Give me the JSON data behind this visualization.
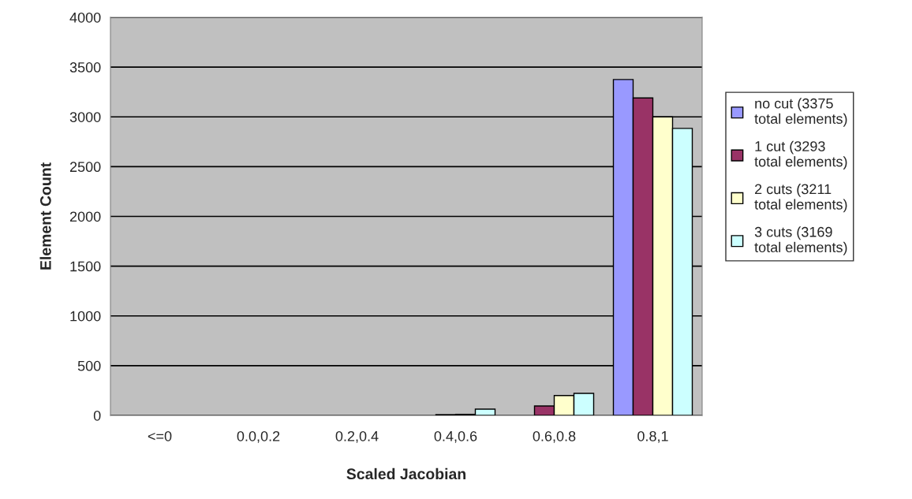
{
  "chart_data": {
    "type": "bar",
    "xlabel": "Scaled Jacobian",
    "ylabel": "Element Count",
    "categories": [
      "<=0",
      "0.0,0.2",
      "0.2,0.4",
      "0.4,0.6",
      "0.6,0.8",
      "0.8,1"
    ],
    "series": [
      {
        "name": "no cut (3375 total elements)",
        "color": "#9999ff",
        "values": [
          null,
          null,
          null,
          null,
          null,
          3375
        ]
      },
      {
        "name": "1 cut (3293 total elements)",
        "color": "#993366",
        "values": [
          null,
          null,
          null,
          8,
          95,
          3190
        ]
      },
      {
        "name": "2 cuts (3211 total elements)",
        "color": "#ffffcc",
        "values": [
          null,
          null,
          null,
          11,
          200,
          3000
        ]
      },
      {
        "name": "3 cuts (3169 total elements)",
        "color": "#ccffff",
        "values": [
          null,
          null,
          null,
          63,
          222,
          2884
        ]
      }
    ],
    "ylim": [
      0,
      4000
    ],
    "yticks": [
      0,
      500,
      1000,
      1500,
      2000,
      2500,
      3000,
      3500,
      4000
    ],
    "grid": "y",
    "legend": "right"
  }
}
